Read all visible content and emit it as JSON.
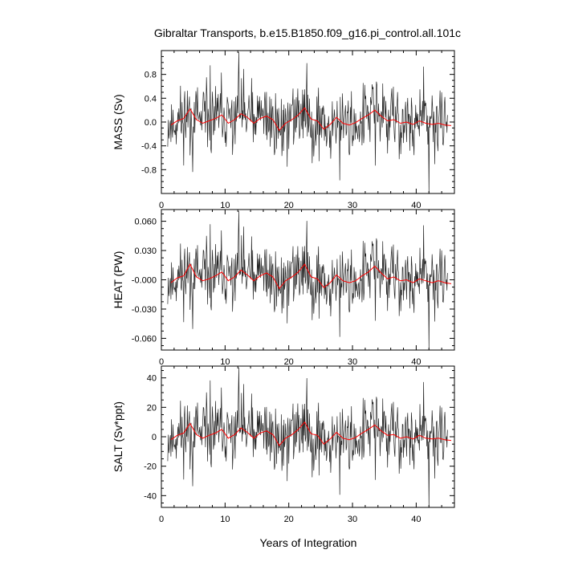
{
  "title": "Gibraltar Transports, b.e15.B1850.f09_g16.pi_control.all.101c",
  "xlabel": "Years of Integration",
  "colors": {
    "raw": "#000000",
    "smooth": "#ff0000",
    "frame": "#000000"
  },
  "chart_data": [
    {
      "type": "line",
      "ylabel": "MASS (Sv)",
      "xlim": [
        0,
        46
      ],
      "ylim": [
        -1.2,
        1.2
      ],
      "yticks": [
        -0.8,
        -0.4,
        0.0,
        0.4,
        0.8
      ],
      "yticklabels": [
        "-0.8",
        "-0.4",
        "0.0",
        "0.4",
        "0.8"
      ],
      "xticks": [
        0,
        10,
        20,
        30,
        40
      ],
      "xticklabels": [
        "0",
        "10",
        "20",
        "30",
        "40"
      ],
      "smooth": {
        "x": [
          1.5,
          2.5,
          3.5,
          4.5,
          5.5,
          6.5,
          7.5,
          8.5,
          9.5,
          10.5,
          11.5,
          12.5,
          13.5,
          14.5,
          15.5,
          16.5,
          17.5,
          18.5,
          19.5,
          20.5,
          21.5,
          22.5,
          23.5,
          24.5,
          25.5,
          26.5,
          27.5,
          28.5,
          29.5,
          30.5,
          31.5,
          32.5,
          33.5,
          34.5,
          35.5,
          36.5,
          37.5,
          38.5,
          39.5,
          40.5,
          41.5,
          42.5,
          43.5,
          44.5,
          45.5
        ],
        "values": [
          -0.05,
          0.02,
          0.06,
          0.22,
          0.04,
          -0.02,
          0.02,
          0.06,
          0.12,
          -0.02,
          0.04,
          0.14,
          0.08,
          -0.02,
          0.06,
          0.1,
          0.04,
          -0.14,
          -0.02,
          0.04,
          0.12,
          0.24,
          0.05,
          0.02,
          -0.12,
          -0.04,
          0.08,
          -0.02,
          -0.05,
          -0.01,
          0.06,
          0.12,
          0.2,
          0.1,
          0.02,
          0.04,
          -0.02,
          0.0,
          -0.04,
          0.02,
          -0.02,
          -0.04,
          -0.02,
          -0.05,
          -0.06
        ]
      },
      "series_seed": 11
    },
    {
      "type": "line",
      "ylabel": "HEAT (PW)",
      "xlim": [
        0,
        46
      ],
      "ylim": [
        -0.072,
        0.072
      ],
      "yticks": [
        -0.06,
        -0.03,
        0.0,
        0.03,
        0.06
      ],
      "yticklabels": [
        "-0.060",
        "-0.030",
        "-0.000",
        "0.030",
        "0.060"
      ],
      "xticks": [
        0,
        10,
        20,
        30,
        40
      ],
      "xticklabels": [
        "0",
        "10",
        "20",
        "30",
        "40"
      ],
      "smooth": {
        "x": [
          1.5,
          2.5,
          3.5,
          4.5,
          5.5,
          6.5,
          7.5,
          8.5,
          9.5,
          10.5,
          11.5,
          12.5,
          13.5,
          14.5,
          15.5,
          16.5,
          17.5,
          18.5,
          19.5,
          20.5,
          21.5,
          22.5,
          23.5,
          24.5,
          25.5,
          26.5,
          27.5,
          28.5,
          29.5,
          30.5,
          31.5,
          32.5,
          33.5,
          34.5,
          35.5,
          36.5,
          37.5,
          38.5,
          39.5,
          40.5,
          41.5,
          42.5,
          43.5,
          44.5,
          45.5
        ],
        "values": [
          -0.003,
          0.002,
          0.004,
          0.016,
          0.003,
          -0.001,
          0.001,
          0.004,
          0.008,
          -0.001,
          0.003,
          0.01,
          0.005,
          -0.001,
          0.004,
          0.007,
          0.003,
          -0.009,
          -0.001,
          0.003,
          0.008,
          0.016,
          0.003,
          0.001,
          -0.008,
          -0.003,
          0.005,
          -0.001,
          -0.003,
          -0.001,
          0.004,
          0.008,
          0.014,
          0.007,
          0.001,
          0.003,
          -0.001,
          0.0,
          -0.003,
          0.001,
          -0.001,
          -0.003,
          -0.001,
          -0.003,
          -0.004
        ]
      },
      "series_seed": 11
    },
    {
      "type": "line",
      "ylabel": "SALT (Sv*ppt)",
      "xlim": [
        0,
        46
      ],
      "ylim": [
        -48,
        48
      ],
      "yticks": [
        -40,
        -20,
        0,
        20,
        40
      ],
      "yticklabels": [
        "-40",
        "-20",
        "0",
        "20",
        "40"
      ],
      "xticks": [
        0,
        10,
        20,
        30,
        40
      ],
      "xticklabels": [
        "0",
        "10",
        "20",
        "30",
        "40"
      ],
      "smooth": {
        "x": [
          1.5,
          2.5,
          3.5,
          4.5,
          5.5,
          6.5,
          7.5,
          8.5,
          9.5,
          10.5,
          11.5,
          12.5,
          13.5,
          14.5,
          15.5,
          16.5,
          17.5,
          18.5,
          19.5,
          20.5,
          21.5,
          22.5,
          23.5,
          24.5,
          25.5,
          26.5,
          27.5,
          28.5,
          29.5,
          30.5,
          31.5,
          32.5,
          33.5,
          34.5,
          35.5,
          36.5,
          37.5,
          38.5,
          39.5,
          40.5,
          41.5,
          42.5,
          43.5,
          44.5,
          45.5
        ],
        "values": [
          -2,
          1,
          2.5,
          9,
          1.5,
          -1,
          1,
          2.5,
          5,
          -1,
          1.5,
          6,
          3,
          -1,
          2.5,
          4,
          1.5,
          -6,
          -1,
          1.5,
          5,
          10,
          2,
          1,
          -5,
          -1.5,
          3,
          -1,
          -2,
          -0.5,
          2.5,
          5,
          8,
          4,
          1,
          1.5,
          -1,
          0,
          -1.5,
          1,
          -1,
          -1.5,
          -1,
          -2,
          -2.5
        ]
      },
      "series_seed": 11
    }
  ]
}
